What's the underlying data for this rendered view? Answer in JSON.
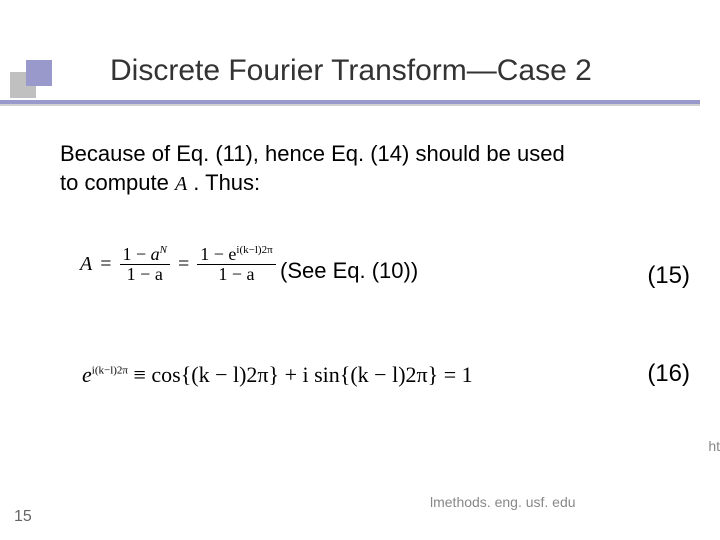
{
  "accent_color": "#9999cc",
  "shadow_color": "#c0c0c0",
  "title": "Discrete Fourier Transform—Case 2",
  "body_line1": "Because of Eq. (11), hence Eq. (14) should be used",
  "body_line2a": "to compute ",
  "body_inline_math": "A",
  "body_line2b": ". Thus:",
  "eq1": {
    "lhs": "A =",
    "frac1_num": "1 − aᴺ",
    "frac1_num_sup": "N",
    "frac1_den": "1 − a",
    "mid": "=",
    "frac2_num_prefix": "1 − e",
    "frac2_num_exp": "i(k−l)2π",
    "frac2_den": "1 − a"
  },
  "see_eq": "(See Eq. (10))",
  "eq_label_15": "(15)",
  "eq2_prefix": "e",
  "eq2_exp": "i(k−l)2π",
  "eq2_equiv": " ≡ cos{(k − l)2π} + i sin{(k − l)2π} = 1",
  "eq_label_16": "(16)",
  "slide_number": "15",
  "footer_url": "lmethods. eng. usf. edu",
  "footer_ht": "ht"
}
